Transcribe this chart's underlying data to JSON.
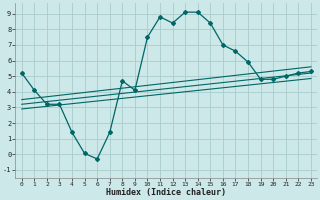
{
  "xlabel": "Humidex (Indice chaleur)",
  "bg_color": "#cce8e8",
  "line_color": "#006666",
  "grid_color": "#aacccc",
  "xlim": [
    -0.5,
    23.5
  ],
  "ylim": [
    -1.5,
    9.7
  ],
  "xticks": [
    0,
    1,
    2,
    3,
    4,
    5,
    6,
    7,
    8,
    9,
    10,
    11,
    12,
    13,
    14,
    15,
    16,
    17,
    18,
    19,
    20,
    21,
    22,
    23
  ],
  "yticks": [
    -1,
    0,
    1,
    2,
    3,
    4,
    5,
    6,
    7,
    8,
    9
  ],
  "curve_x": [
    0,
    1,
    2,
    3,
    4,
    5,
    6,
    7,
    8,
    9,
    10,
    11,
    12,
    13,
    14,
    15,
    16,
    17,
    18,
    19,
    20,
    21,
    22,
    23
  ],
  "curve_y": [
    5.2,
    4.1,
    3.2,
    3.2,
    1.4,
    0.05,
    -0.3,
    1.4,
    4.7,
    4.1,
    7.5,
    8.8,
    8.4,
    9.1,
    9.1,
    8.4,
    7.0,
    6.6,
    5.9,
    4.8,
    4.8,
    5.0,
    5.2,
    5.3
  ],
  "line1_x": [
    0,
    23
  ],
  "line1_y": [
    3.5,
    5.6
  ],
  "line2_x": [
    0,
    23
  ],
  "line2_y": [
    3.2,
    5.2
  ],
  "line3_x": [
    0,
    23
  ],
  "line3_y": [
    2.9,
    4.85
  ]
}
